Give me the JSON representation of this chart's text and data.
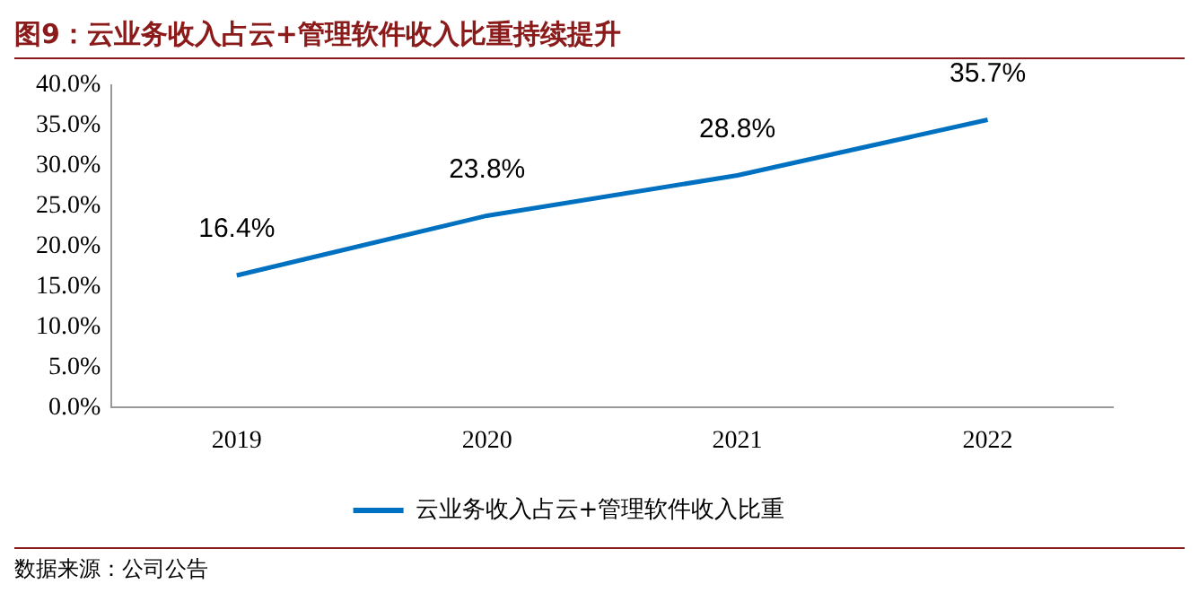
{
  "chart_data": {
    "type": "line",
    "title": "图9：云业务收入占云+管理软件收入比重持续提升",
    "categories": [
      "2019",
      "2020",
      "2021",
      "2022"
    ],
    "series": [
      {
        "name": "云业务收入占云+管理软件收入比重",
        "color": "#0070c0",
        "values": [
          16.4,
          23.8,
          28.8,
          35.7
        ],
        "value_labels": [
          "16.4%",
          "23.8%",
          "28.8%",
          "35.7%"
        ]
      }
    ],
    "ylim": [
      0,
      40
    ],
    "yticks": [
      {
        "value": 0,
        "label": "0.0%"
      },
      {
        "value": 5,
        "label": "5.0%"
      },
      {
        "value": 10,
        "label": "10.0%"
      },
      {
        "value": 15,
        "label": "15.0%"
      },
      {
        "value": 20,
        "label": "20.0%"
      },
      {
        "value": 25,
        "label": "25.0%"
      },
      {
        "value": 30,
        "label": "30.0%"
      },
      {
        "value": 35,
        "label": "35.0%"
      },
      {
        "value": 40,
        "label": "40.0%"
      }
    ],
    "grid": false,
    "legend": "bottom",
    "marker": "none",
    "line_style": "solid",
    "annotations": [
      "数据来源：公司公告"
    ]
  }
}
